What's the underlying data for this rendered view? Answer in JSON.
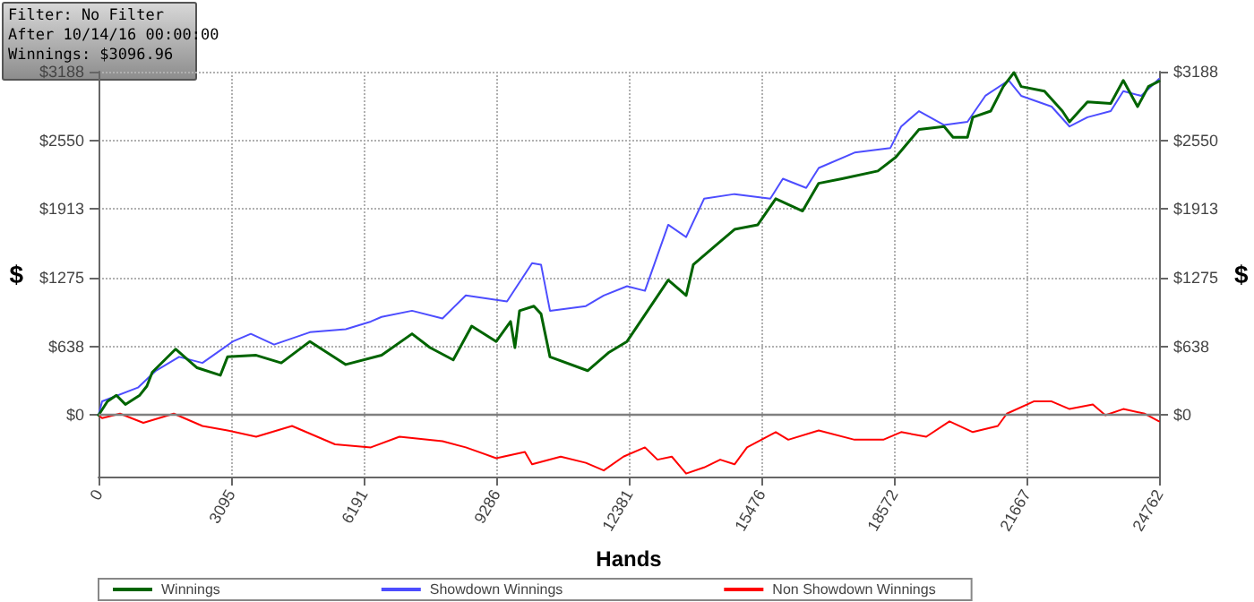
{
  "chart_data": {
    "type": "line",
    "xlabel": "Hands",
    "ylabel": "$",
    "y2label": "$",
    "annotations": [
      "Filter: No Filter",
      "After 10/14/16 00:00:00",
      "Winnings: $3096.96"
    ],
    "xlim": [
      0,
      24762
    ],
    "xticks": [
      0,
      3095,
      6191,
      9286,
      12381,
      15476,
      18572,
      21667,
      24762
    ],
    "ylim": [
      -570,
      3188
    ],
    "yticks": [
      {
        "value": 0,
        "label": "$0"
      },
      {
        "value": 638,
        "label": "$638"
      },
      {
        "value": 1275,
        "label": "$1275"
      },
      {
        "value": 1913,
        "label": "$1913"
      },
      {
        "value": 2550,
        "label": "$2550"
      },
      {
        "value": 3188,
        "label": "$3188"
      }
    ],
    "y2lim": [
      -570,
      3188
    ],
    "y2ticks": [
      {
        "value": 0,
        "label": "$0"
      },
      {
        "value": 638,
        "label": "$638"
      },
      {
        "value": 1275,
        "label": "$1275"
      },
      {
        "value": 1913,
        "label": "$1913"
      },
      {
        "value": 2550,
        "label": "$2550"
      },
      {
        "value": 3188,
        "label": "$3188"
      }
    ],
    "grid": true,
    "legend": "bottom",
    "marker": "none",
    "line_style": "solid",
    "ref_lines": [
      {
        "axis": "y",
        "value": 0,
        "color": "#808080"
      }
    ],
    "series": [
      {
        "name": "Winnings",
        "color": "#006400",
        "x": [
          0,
          209,
          418,
          627,
          962,
          1129,
          1255,
          1799,
          2301,
          2844,
          3012,
          3681,
          4267,
          4936,
          5773,
          6609,
          7320,
          7739,
          8282,
          8713,
          9286,
          9621,
          9722,
          9830,
          10165,
          10332,
          10541,
          11420,
          11922,
          12340,
          13302,
          13720,
          13888,
          14431,
          14850,
          15393,
          15812,
          16439,
          16816,
          17360,
          18196,
          18614,
          19158,
          19744,
          19953,
          20288,
          20413,
          20831,
          21124,
          21375,
          21542,
          22086,
          22505,
          22672,
          23091,
          23634,
          23927,
          24261,
          24513,
          24762
        ],
        "values": [
          0,
          128,
          185,
          100,
          185,
          270,
          399,
          613,
          440,
          370,
          541,
          556,
          485,
          684,
          470,
          556,
          755,
          627,
          513,
          826,
          684,
          869,
          627,
          969,
          1012,
          940,
          541,
          413,
          584,
          684,
          1254,
          1111,
          1397,
          1582,
          1724,
          1767,
          2009,
          1895,
          2152,
          2194,
          2266,
          2394,
          2651,
          2679,
          2579,
          2579,
          2765,
          2822,
          3050,
          3180,
          3050,
          3007,
          2822,
          2722,
          2907,
          2893,
          3107,
          2864,
          3050,
          3100
        ]
      },
      {
        "name": "Showdown Winnings",
        "color": "#4d4dff",
        "x": [
          0,
          84,
          920,
          1339,
          1882,
          2426,
          3137,
          3556,
          4099,
          4936,
          5773,
          6358,
          6609,
          7320,
          8031,
          8575,
          9537,
          10123,
          10332,
          10541,
          11378,
          11796,
          12340,
          12758,
          13302,
          13720,
          14139,
          14850,
          15686,
          15979,
          16523,
          16816,
          17653,
          18489,
          18740,
          19158,
          19744,
          20288,
          20706,
          21250,
          21542,
          22254,
          22672,
          23091,
          23634,
          23927,
          24345,
          24762
        ],
        "values": [
          0,
          128,
          256,
          413,
          541,
          485,
          684,
          755,
          655,
          770,
          798,
          869,
          912,
          969,
          898,
          1111,
          1055,
          1411,
          1397,
          969,
          1012,
          1111,
          1197,
          1154,
          1767,
          1653,
          2009,
          2052,
          2009,
          2194,
          2109,
          2294,
          2437,
          2480,
          2679,
          2822,
          2693,
          2722,
          2964,
          3107,
          2964,
          2864,
          2679,
          2765,
          2822,
          3007,
          2964,
          3121
        ]
      },
      {
        "name": "Non Showdown Winnings",
        "color": "#ff0000",
        "x": [
          0,
          84,
          502,
          1046,
          1757,
          2426,
          3012,
          3681,
          4518,
          5522,
          6358,
          7027,
          8031,
          8575,
          9286,
          9956,
          10123,
          10792,
          11378,
          11796,
          12256,
          12758,
          13051,
          13386,
          13720,
          14139,
          14515,
          14850,
          15142,
          15812,
          16105,
          16816,
          17653,
          18322,
          18740,
          19326,
          19869,
          20413,
          20998,
          21208,
          21835,
          22254,
          22672,
          23216,
          23509,
          23927,
          24429,
          24762
        ],
        "values": [
          0,
          -28,
          14,
          -71,
          14,
          -100,
          -142,
          -200,
          -100,
          -271,
          -299,
          -200,
          -242,
          -299,
          -399,
          -342,
          -456,
          -385,
          -442,
          -513,
          -385,
          -299,
          -413,
          -385,
          -542,
          -485,
          -413,
          -456,
          -299,
          -157,
          -228,
          -142,
          -228,
          -228,
          -157,
          -200,
          -57,
          -157,
          -100,
          14,
          128,
          128,
          57,
          100,
          0,
          57,
          14,
          -57
        ]
      }
    ]
  }
}
